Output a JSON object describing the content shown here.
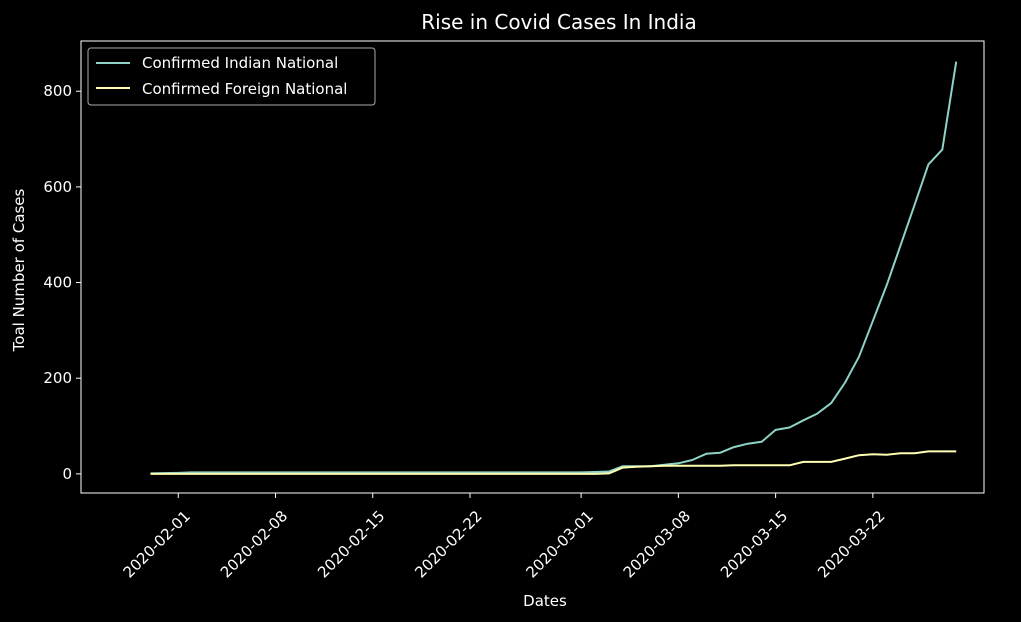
{
  "chart_data": {
    "type": "line",
    "title": "Rise in Covid Cases In India",
    "xlabel": "Dates",
    "ylabel": "Toal Number of Cases",
    "x_tick_labels": [
      "2020-02-01",
      "2020-02-08",
      "2020-02-15",
      "2020-02-22",
      "2020-03-01",
      "2020-03-08",
      "2020-03-15",
      "2020-03-22"
    ],
    "y_tick_labels": [
      "0",
      "200",
      "400",
      "600",
      "800"
    ],
    "ylim": [
      -40,
      905
    ],
    "xlim": [
      "2020-01-25",
      "2020-03-30"
    ],
    "grid": false,
    "legend_position": "top-left",
    "background": "#000000",
    "series": [
      {
        "name": "Confirmed Indian National",
        "color": "#8dd3c7",
        "points": [
          [
            "2020-01-30",
            1
          ],
          [
            "2020-02-01",
            2
          ],
          [
            "2020-02-02",
            3
          ],
          [
            "2020-02-15",
            3
          ],
          [
            "2020-03-01",
            3
          ],
          [
            "2020-03-02",
            4
          ],
          [
            "2020-03-03",
            5
          ],
          [
            "2020-03-04",
            16
          ],
          [
            "2020-03-05",
            16
          ],
          [
            "2020-03-06",
            16
          ],
          [
            "2020-03-07",
            19
          ],
          [
            "2020-03-08",
            22
          ],
          [
            "2020-03-09",
            29
          ],
          [
            "2020-03-10",
            42
          ],
          [
            "2020-03-11",
            44
          ],
          [
            "2020-03-12",
            56
          ],
          [
            "2020-03-13",
            63
          ],
          [
            "2020-03-14",
            67
          ],
          [
            "2020-03-15",
            92
          ],
          [
            "2020-03-16",
            97
          ],
          [
            "2020-03-17",
            112
          ],
          [
            "2020-03-18",
            126
          ],
          [
            "2020-03-19",
            148
          ],
          [
            "2020-03-20",
            191
          ],
          [
            "2020-03-21",
            245
          ],
          [
            "2020-03-22",
            320
          ],
          [
            "2020-03-23",
            395
          ],
          [
            "2020-03-24",
            478
          ],
          [
            "2020-03-25",
            562
          ],
          [
            "2020-03-26",
            647
          ],
          [
            "2020-03-27",
            678
          ],
          [
            "2020-03-28",
            862
          ]
        ]
      },
      {
        "name": "Confirmed Foreign National",
        "color": "#ffffb3",
        "points": [
          [
            "2020-01-30",
            0
          ],
          [
            "2020-03-02",
            0
          ],
          [
            "2020-03-03",
            1
          ],
          [
            "2020-03-04",
            13
          ],
          [
            "2020-03-05",
            15
          ],
          [
            "2020-03-06",
            16
          ],
          [
            "2020-03-07",
            17
          ],
          [
            "2020-03-08",
            17
          ],
          [
            "2020-03-09",
            17
          ],
          [
            "2020-03-10",
            17
          ],
          [
            "2020-03-11",
            17
          ],
          [
            "2020-03-12",
            18
          ],
          [
            "2020-03-13",
            18
          ],
          [
            "2020-03-14",
            18
          ],
          [
            "2020-03-15",
            18
          ],
          [
            "2020-03-16",
            18
          ],
          [
            "2020-03-17",
            25
          ],
          [
            "2020-03-18",
            25
          ],
          [
            "2020-03-19",
            25
          ],
          [
            "2020-03-20",
            32
          ],
          [
            "2020-03-21",
            39
          ],
          [
            "2020-03-22",
            41
          ],
          [
            "2020-03-23",
            40
          ],
          [
            "2020-03-24",
            43
          ],
          [
            "2020-03-25",
            43
          ],
          [
            "2020-03-26",
            47
          ],
          [
            "2020-03-27",
            47
          ],
          [
            "2020-03-28",
            47
          ]
        ]
      }
    ]
  }
}
